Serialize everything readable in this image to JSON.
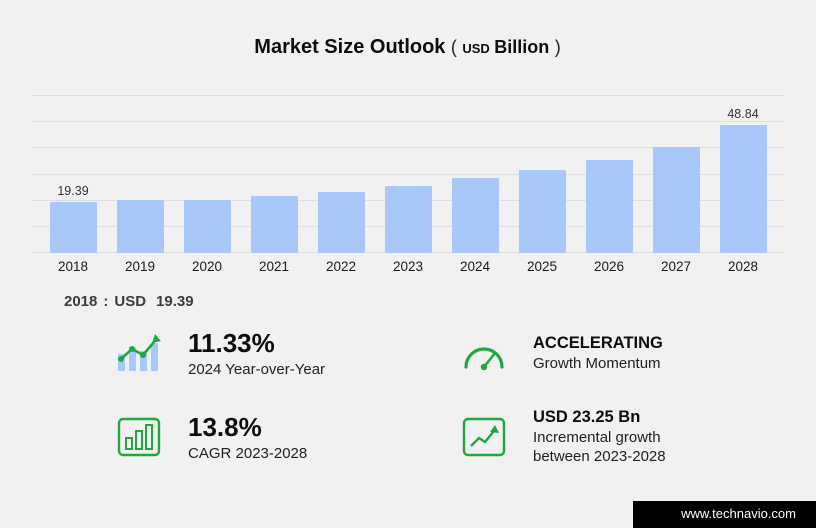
{
  "title": {
    "main": "Market Size Outlook",
    "open_paren": "(",
    "currency": "USD",
    "unit": "Billion",
    "close_paren": ")"
  },
  "chart_data": {
    "type": "bar",
    "title": "Market Size Outlook (USD Billion)",
    "categories": [
      "2018",
      "2019",
      "2020",
      "2021",
      "2022",
      "2023",
      "2024",
      "2025",
      "2026",
      "2027",
      "2028"
    ],
    "values": [
      19.39,
      20.4,
      20.2,
      21.9,
      23.4,
      25.59,
      28.49,
      31.7,
      35.4,
      40.5,
      48.84
    ],
    "bar_labels": {
      "0": "19.39",
      "10": "48.84"
    },
    "ylim": [
      0,
      65
    ],
    "grid_values": [
      0,
      10,
      20,
      30,
      40,
      50,
      60
    ],
    "bar_color": "#a9c8fa",
    "legend": "none",
    "xlabel": "",
    "ylabel": ""
  },
  "callout": {
    "year": "2018",
    "separator": ":",
    "currency": "USD",
    "value": "19.39"
  },
  "stats": [
    {
      "icon": "growth-bars-icon",
      "value": "11.33%",
      "lines": [
        "2024 Year-over-Year"
      ]
    },
    {
      "icon": "speedometer-icon",
      "value": "ACCELERATING",
      "lines": [
        "Growth Momentum"
      ]
    },
    {
      "icon": "bar-chart-box-icon",
      "value": "13.8%",
      "lines": [
        "CAGR 2023-2028"
      ]
    },
    {
      "icon": "line-chart-box-icon",
      "value": "USD 23.25 Bn",
      "lines": [
        "Incremental growth",
        "between 2023-2028"
      ]
    }
  ],
  "footer": {
    "url": "www.technavio.com"
  },
  "colors": {
    "background": "#f1f1f2",
    "bar": "#a9c8fa",
    "accent_green": "#1fa83e",
    "text_dark": "#111111",
    "gridline": "#dedee0"
  }
}
